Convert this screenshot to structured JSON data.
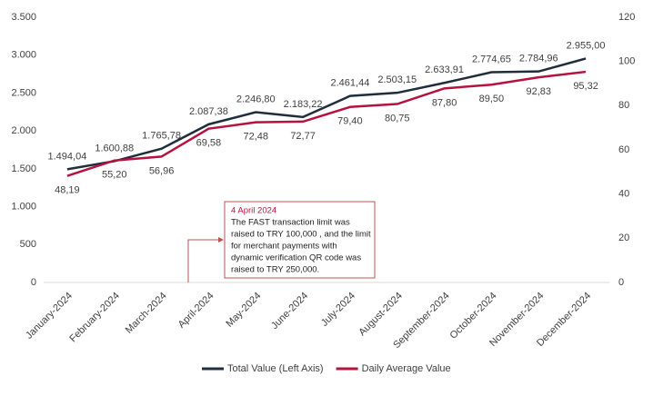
{
  "chart_data": {
    "type": "line",
    "categories": [
      "January-2024",
      "February-2024",
      "March-2024",
      "April-2024",
      "May-2024",
      "June-2024",
      "July-2024",
      "August-2024",
      "September-2024",
      "October-2024",
      "November-2024",
      "December-2024"
    ],
    "series": [
      {
        "name": "Total Value (Left Axis)",
        "color": "#1f2d3d",
        "axis": "y",
        "values": [
          1494.04,
          1600.88,
          1765.78,
          2087.38,
          2246.8,
          2183.22,
          2461.44,
          2503.15,
          2633.91,
          2774.65,
          2784.96,
          2955.0
        ],
        "value_labels": [
          "1.494,04",
          "1.600,88",
          "1.765,78",
          "2.087,38",
          "2.246,80",
          "2.183,22",
          "2.461,44",
          "2.503,15",
          "2.633,91",
          "2.774,65",
          "2.784,96",
          "2.955,00"
        ]
      },
      {
        "name": "Daily Average Value",
        "color": "#b5123e",
        "axis": "y2",
        "values": [
          48.19,
          55.2,
          56.96,
          69.58,
          72.48,
          72.77,
          79.4,
          80.75,
          87.8,
          89.5,
          92.83,
          95.32
        ],
        "value_labels": [
          "48,19",
          "55,20",
          "56,96",
          "69,58",
          "72,48",
          "72,77",
          "79,40",
          "80,75",
          "87,80",
          "89,50",
          "92,83",
          "95,32"
        ]
      }
    ],
    "ylim": [
      0,
      3500
    ],
    "yticks": [
      0,
      500,
      {
        "value": 1000,
        "label": "1.000"
      },
      {
        "value": 1500,
        "label": "1.500"
      },
      {
        "value": 2000,
        "label": "2.000"
      },
      {
        "value": 2500,
        "label": "2.500"
      },
      {
        "value": 3000,
        "label": "3.000"
      },
      {
        "value": 3500,
        "label": "3.500"
      }
    ],
    "y2lim": [
      0,
      120
    ],
    "y2ticks": [
      0,
      20,
      40,
      60,
      80,
      100,
      120
    ],
    "grid": false,
    "legend": "bottom",
    "annotation": {
      "title": "4 April 2024",
      "lines": [
        "The FAST transaction limit was",
        "raised to TRY 100,000 , and the limit",
        "for merchant payments with",
        "dynamic verification QR code was",
        "raised to TRY 250,000."
      ]
    }
  }
}
